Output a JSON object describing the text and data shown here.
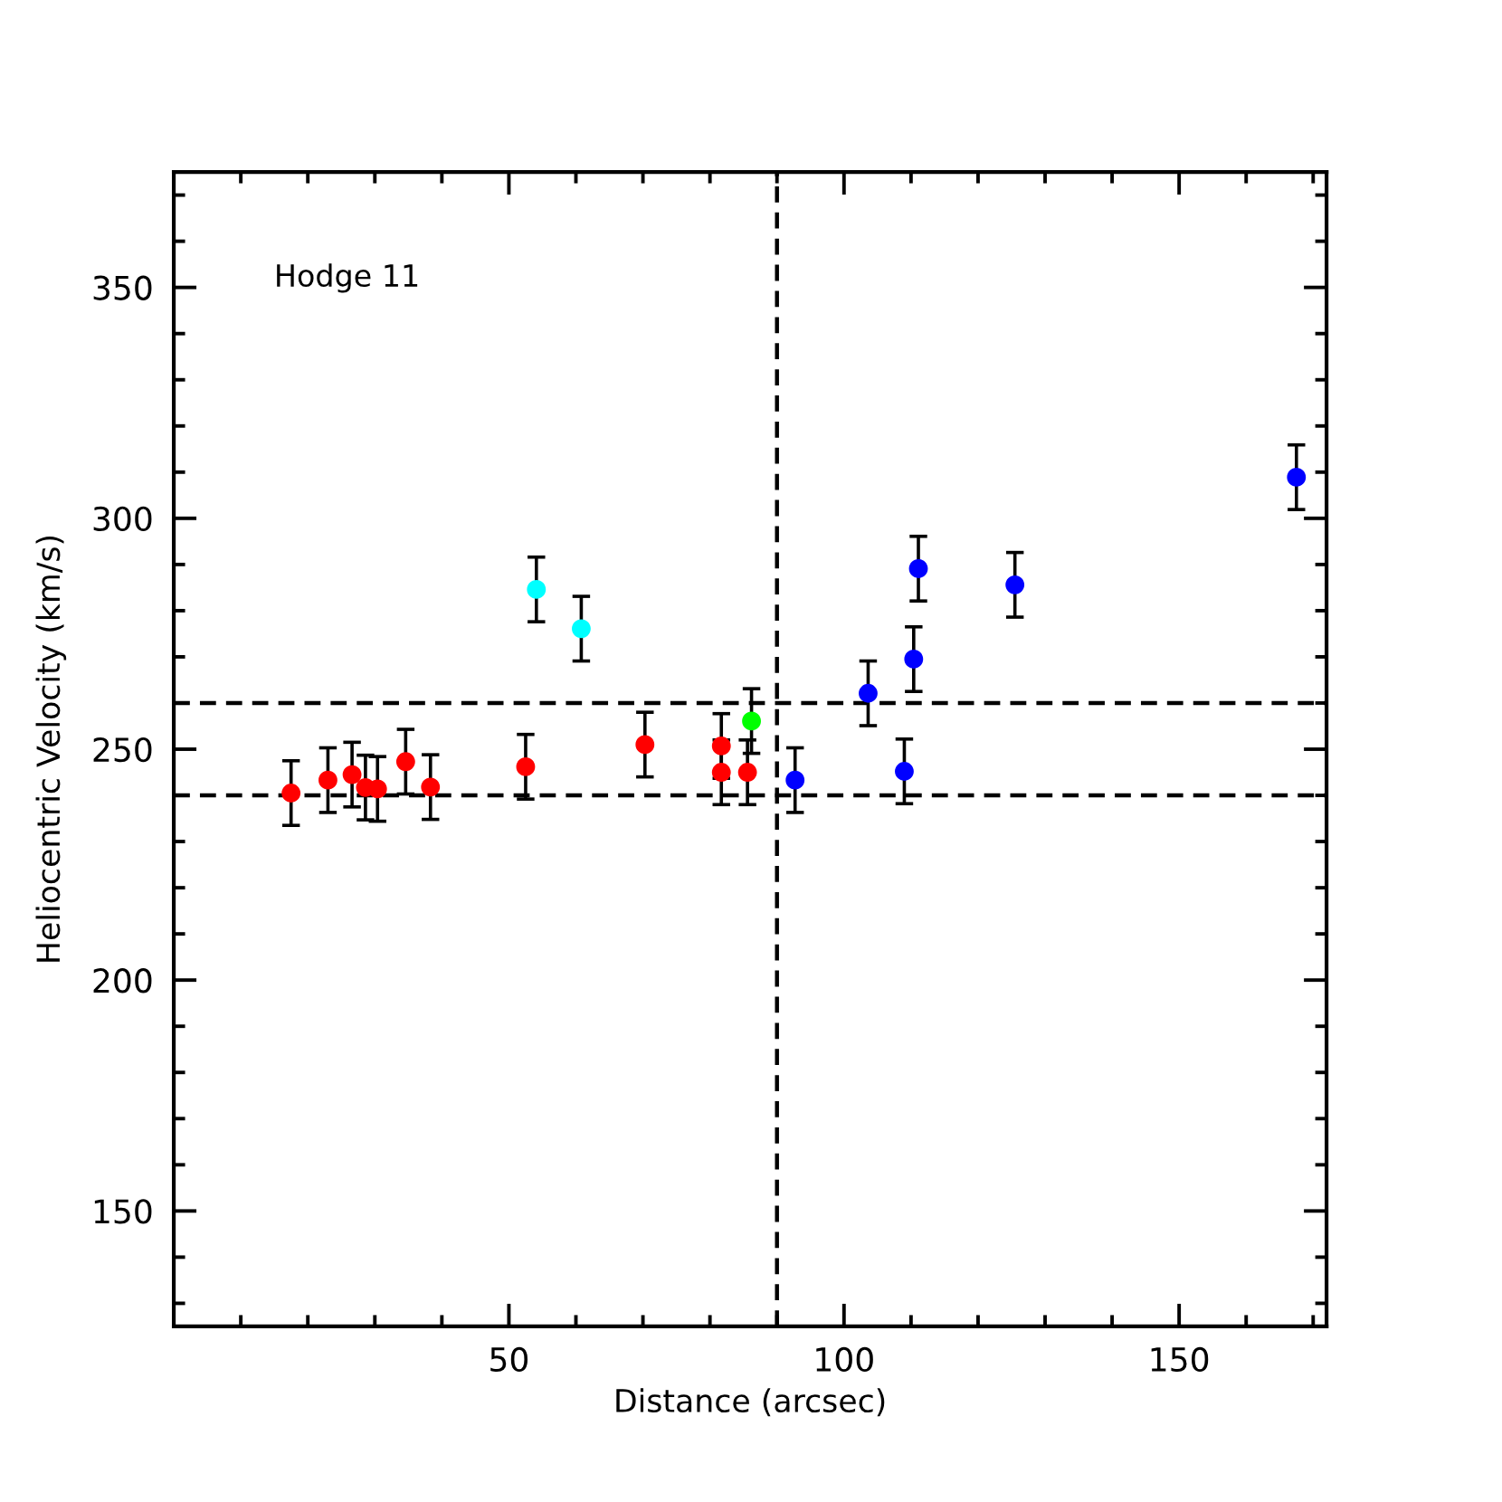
{
  "chart_data": {
    "type": "scatter",
    "xlabel": "Distance (arcsec)",
    "ylabel": "Heliocentric Velocity (km/s)",
    "annotations": [
      "Hodge 11"
    ],
    "xlim": [
      0,
      172
    ],
    "ylim": [
      125,
      375
    ],
    "xticks": [
      {
        "value": 10,
        "label": null
      },
      {
        "value": 20,
        "label": null
      },
      {
        "value": 30,
        "label": null
      },
      {
        "value": 40,
        "label": null
      },
      50,
      {
        "value": 60,
        "label": null
      },
      {
        "value": 70,
        "label": null
      },
      {
        "value": 80,
        "label": null
      },
      {
        "value": 90,
        "label": null
      },
      100,
      {
        "value": 110,
        "label": null
      },
      {
        "value": 120,
        "label": null
      },
      {
        "value": 130,
        "label": null
      },
      {
        "value": 140,
        "label": null
      },
      150,
      {
        "value": 160,
        "label": null
      },
      {
        "value": 170,
        "label": null
      }
    ],
    "yticks": [
      {
        "value": 130,
        "label": null
      },
      {
        "value": 140,
        "label": null
      },
      150,
      {
        "value": 160,
        "label": null
      },
      {
        "value": 170,
        "label": null
      },
      {
        "value": 180,
        "label": null
      },
      {
        "value": 190,
        "label": null
      },
      200,
      {
        "value": 210,
        "label": null
      },
      {
        "value": 220,
        "label": null
      },
      {
        "value": 230,
        "label": null
      },
      {
        "value": 240,
        "label": null
      },
      250,
      {
        "value": 260,
        "label": null
      },
      {
        "value": 270,
        "label": null
      },
      {
        "value": 280,
        "label": null
      },
      {
        "value": 290,
        "label": null
      },
      300,
      {
        "value": 310,
        "label": null
      },
      {
        "value": 320,
        "label": null
      },
      {
        "value": 330,
        "label": null
      },
      {
        "value": 340,
        "label": null
      },
      350,
      {
        "value": 360,
        "label": null
      },
      {
        "value": 370,
        "label": null
      }
    ],
    "grid": false,
    "marker": "circle",
    "series": [
      {
        "color": "#ff0000",
        "x": [
          17.5,
          23.0,
          26.6,
          28.6,
          30.4,
          34.6,
          38.3,
          52.5,
          70.3,
          81.7,
          81.7,
          85.6
        ],
        "values": [
          240.5,
          243.3,
          244.5,
          241.7,
          241.4,
          247.3,
          241.8,
          246.2,
          251.0,
          250.7,
          245.0,
          245.0
        ],
        "errors": [
          7,
          7,
          7,
          7,
          7,
          7,
          7,
          7,
          7,
          7,
          7,
          7
        ]
      },
      {
        "color": "#00ffff",
        "x": [
          54.1,
          60.8
        ],
        "values": [
          284.6,
          276.1
        ],
        "errors": [
          7,
          7
        ]
      },
      {
        "color": "#00ff00",
        "x": [
          86.2
        ],
        "values": [
          256.1
        ],
        "errors": [
          7
        ]
      },
      {
        "color": "#0000ff",
        "x": [
          92.7,
          103.6,
          109.0,
          110.4,
          111.1,
          125.5,
          167.5
        ],
        "values": [
          243.3,
          262.1,
          245.2,
          269.5,
          289.1,
          285.6,
          308.9
        ],
        "errors": [
          7,
          7,
          7,
          7,
          7,
          7,
          7
        ]
      }
    ],
    "ref_lines": [
      {
        "axis": "y",
        "value": 240,
        "color": "#000000",
        "line_style": "dashed"
      },
      {
        "axis": "y",
        "value": 260,
        "color": "#000000",
        "line_style": "dashed"
      },
      {
        "axis": "x",
        "value": 90,
        "color": "#000000",
        "line_style": "dashed"
      }
    ]
  }
}
